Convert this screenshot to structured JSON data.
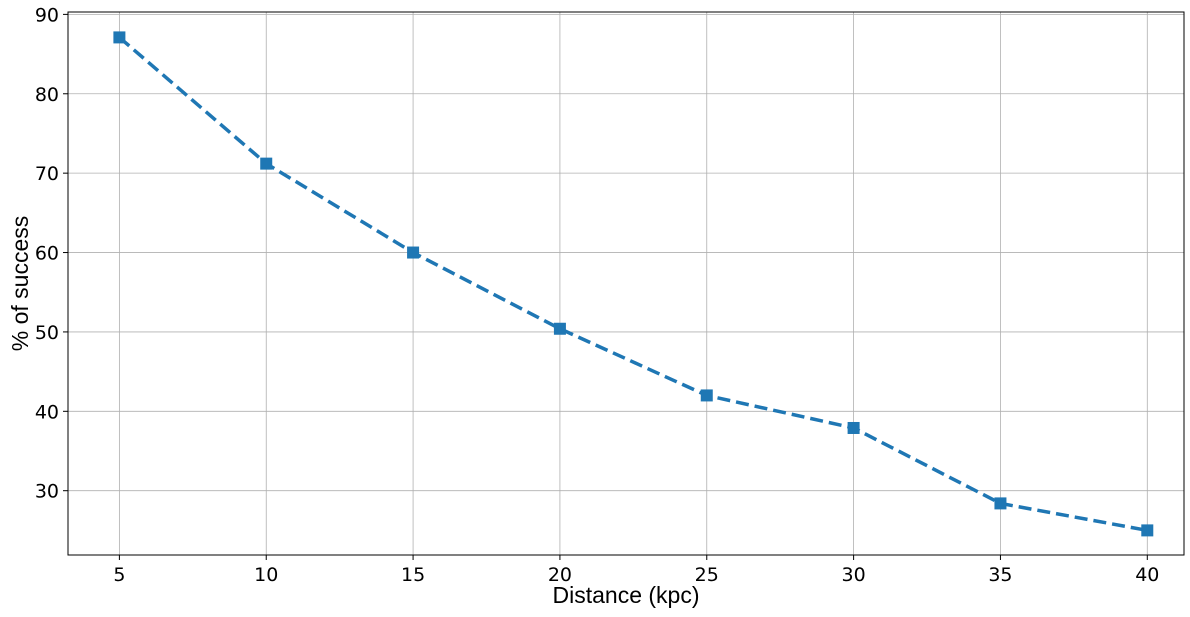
{
  "chart_data": {
    "type": "line",
    "title": "",
    "xlabel": "Distance (kpc)",
    "ylabel": "% of success",
    "x": [
      5,
      10,
      15,
      20,
      25,
      30,
      35,
      40
    ],
    "series": [
      {
        "values": [
          87.1,
          71.2,
          60.0,
          50.4,
          42.0,
          37.9,
          28.4,
          25.0
        ],
        "color": "#1f77b4",
        "line_style": "dashed",
        "marker": "square"
      }
    ],
    "xticks": [
      5,
      10,
      15,
      20,
      25,
      30,
      35,
      40
    ],
    "yticks": [
      30,
      40,
      50,
      60,
      70,
      80,
      90
    ],
    "xlim": [
      3.25,
      41.25
    ],
    "ylim": [
      21.9,
      90.3
    ],
    "grid": true,
    "legend": "none"
  }
}
